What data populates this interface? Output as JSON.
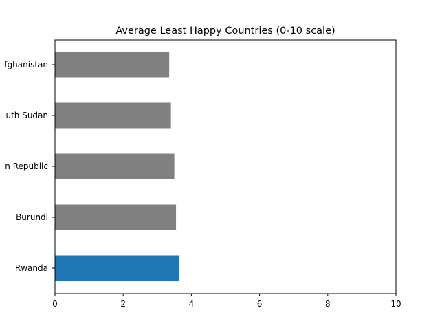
{
  "chart_data": {
    "type": "bar",
    "orientation": "horizontal",
    "title": "Average Least Happy Countries (0-10 scale)",
    "xlabel": "",
    "ylabel": "",
    "categories": [
      "Rwanda",
      "Burundi",
      "Central African Republic",
      "South Sudan",
      "Afghanistan"
    ],
    "category_labels_visible": [
      "Rwanda",
      "Burundi",
      "n Republic",
      "uth Sudan",
      "fghanistan"
    ],
    "values": [
      3.65,
      3.55,
      3.5,
      3.4,
      3.35
    ],
    "bar_colors": [
      "#1f77b4",
      "#808080",
      "#808080",
      "#808080",
      "#808080"
    ],
    "xlim": [
      0,
      10
    ],
    "xticks": [
      0,
      2,
      4,
      6,
      8,
      10
    ],
    "xtick_labels": [
      "0",
      "2",
      "4",
      "6",
      "8",
      "10"
    ],
    "grid": false,
    "legend": "none"
  }
}
